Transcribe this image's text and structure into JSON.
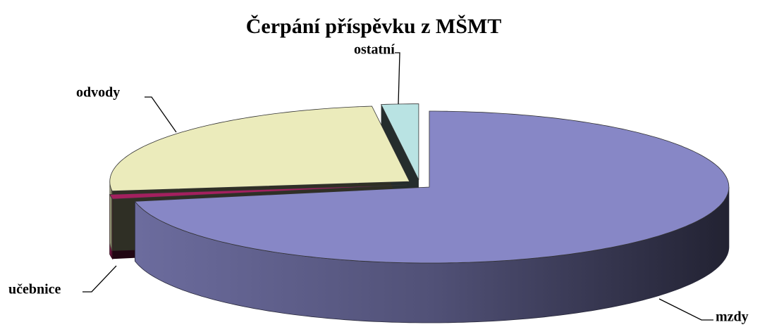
{
  "chart_data": {
    "type": "pie",
    "title": "Čerpání příspěvku z MŠMT",
    "categories": [
      "mzdy",
      "učebnice",
      "odvody",
      "ostatní"
    ],
    "values": [
      72,
      1,
      25,
      2
    ],
    "colors": [
      "#8787c6",
      "#a3205e",
      "#ebebbb",
      "#b9e3e3"
    ]
  }
}
